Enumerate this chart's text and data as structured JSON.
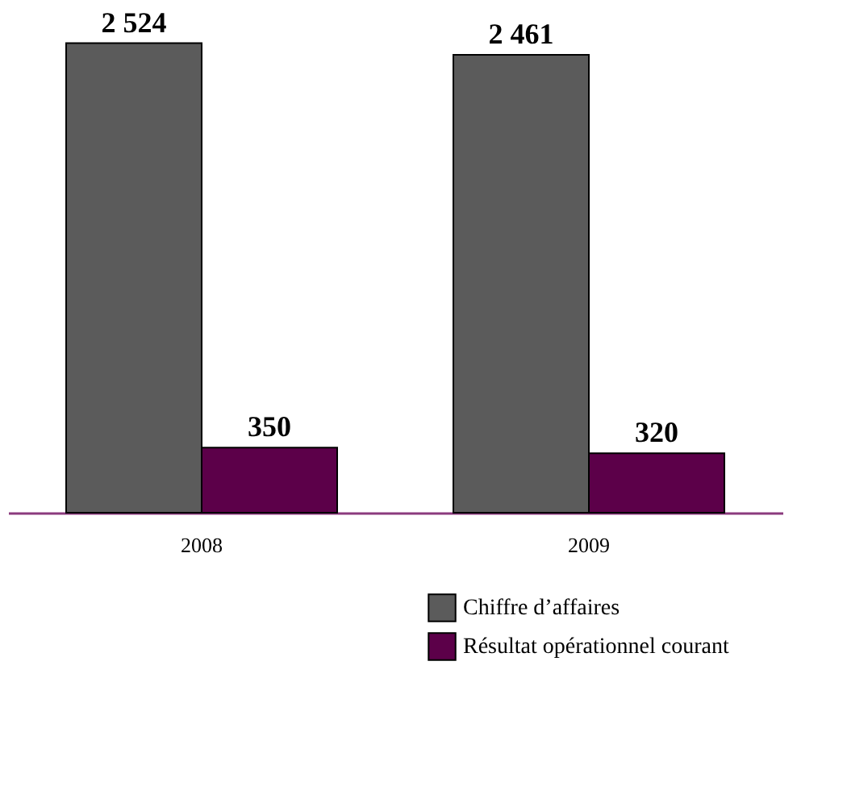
{
  "chart_data": {
    "type": "bar",
    "categories": [
      "2008",
      "2009"
    ],
    "series": [
      {
        "name": "Chiffre d’affaires",
        "color": "#5b5b5b",
        "values": [
          2524,
          2461
        ],
        "value_labels": [
          "2 524",
          "2 461"
        ]
      },
      {
        "name": "Résultat opérationnel courant",
        "color": "#5c0049",
        "values": [
          350,
          320
        ],
        "value_labels": [
          "350",
          "320"
        ]
      }
    ],
    "legend": "bottom right",
    "grid": false,
    "tick_labels": "x"
  }
}
